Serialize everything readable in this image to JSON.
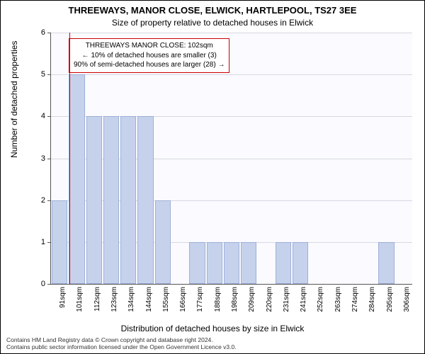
{
  "chart": {
    "type": "bar",
    "title_main": "THREEWAYS, MANOR CLOSE, ELWICK, HARTLEPOOL, TS27 3EE",
    "title_sub": "Size of property relative to detached houses in Elwick",
    "ylabel": "Number of detached properties",
    "xlabel": "Distribution of detached houses by size in Elwick",
    "categories": [
      "91sqm",
      "101sqm",
      "112sqm",
      "123sqm",
      "134sqm",
      "144sqm",
      "155sqm",
      "166sqm",
      "177sqm",
      "188sqm",
      "198sqm",
      "209sqm",
      "220sqm",
      "231sqm",
      "241sqm",
      "252sqm",
      "263sqm",
      "274sqm",
      "284sqm",
      "295sqm",
      "306sqm"
    ],
    "values": [
      2,
      5,
      4,
      4,
      4,
      4,
      2,
      0,
      1,
      1,
      1,
      1,
      0,
      1,
      1,
      0,
      0,
      0,
      0,
      1,
      0
    ],
    "ylim": [
      0,
      6
    ],
    "yticks": [
      0,
      1,
      2,
      3,
      4,
      5,
      6
    ],
    "bar_fill": "#c6d2ec",
    "bar_stroke": "#9eb0d8",
    "background_color": "#fafaff",
    "grid_color": "#d8d8e2",
    "highlight_color": "#cc0000",
    "highlight_at_index": 1,
    "annotation": {
      "line1": "THREEWAYS MANOR CLOSE: 102sqm",
      "line2": "← 10% of detached houses are smaller (3)",
      "line3": "90% of semi-detached houses are larger (28) →"
    },
    "footer1": "Contains HM Land Registry data © Crown copyright and database right 2024.",
    "footer2": "Contains public sector information licensed under the Open Government Licence v3.0."
  }
}
